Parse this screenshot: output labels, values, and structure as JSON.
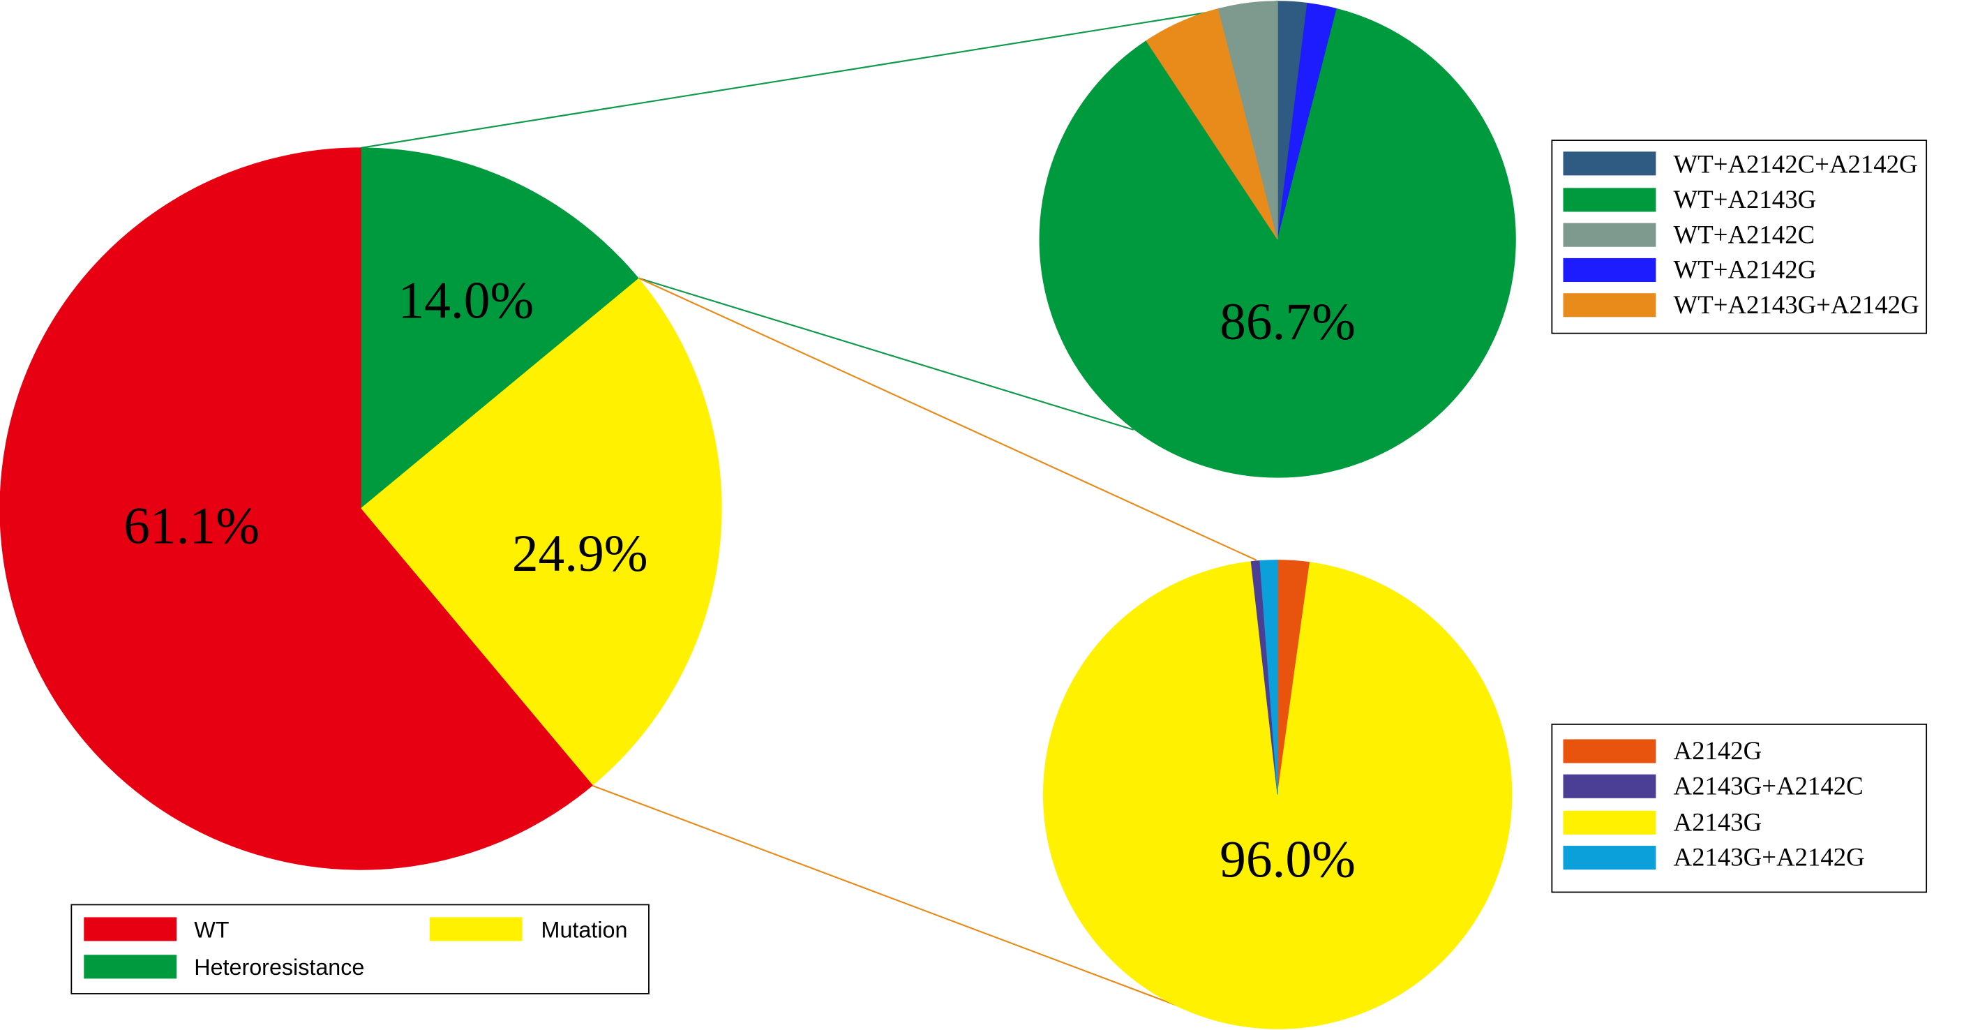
{
  "chart_data": {
    "type": "pie",
    "main": {
      "series": [
        {
          "name": "Heteroresistance",
          "value": 14.0,
          "data_label": "14.0%",
          "color": "#009A3E"
        },
        {
          "name": "Mutation",
          "value": 24.9,
          "data_label": "24.9%",
          "color": "#FFF100"
        },
        {
          "name": "WT",
          "value": 61.1,
          "data_label": "61.1%",
          "color": "#E60012"
        }
      ],
      "legend_placement": "bottom-left"
    },
    "sub_heteroresistance": {
      "series": [
        {
          "name": "WT+A2142C+A2142G",
          "value": 2.0,
          "color": "#2F5A81"
        },
        {
          "name": "WT+A2142G",
          "value": 2.0,
          "color": "#1C1CFF"
        },
        {
          "name": "WT+A2143G",
          "value": 86.7,
          "data_label": "86.7%",
          "color": "#009A3E"
        },
        {
          "name": "WT+A2143G+A2142G",
          "value": 5.3,
          "color": "#E88B1A"
        },
        {
          "name": "WT+A2142C",
          "value": 4.0,
          "color": "#7E9A8F"
        }
      ],
      "legend_placement": "right"
    },
    "sub_mutation": {
      "series": [
        {
          "name": "A2142G",
          "value": 2.2,
          "color": "#E8530E"
        },
        {
          "name": "A2143G",
          "value": 96.0,
          "data_label": "96.0%",
          "color": "#FFF100"
        },
        {
          "name": "A2143G+A2142C",
          "value": 0.6,
          "color": "#4B3F95"
        },
        {
          "name": "A2143G+A2142G",
          "value": 1.2,
          "color": "#0CA0DB"
        }
      ],
      "legend_placement": "right"
    }
  }
}
